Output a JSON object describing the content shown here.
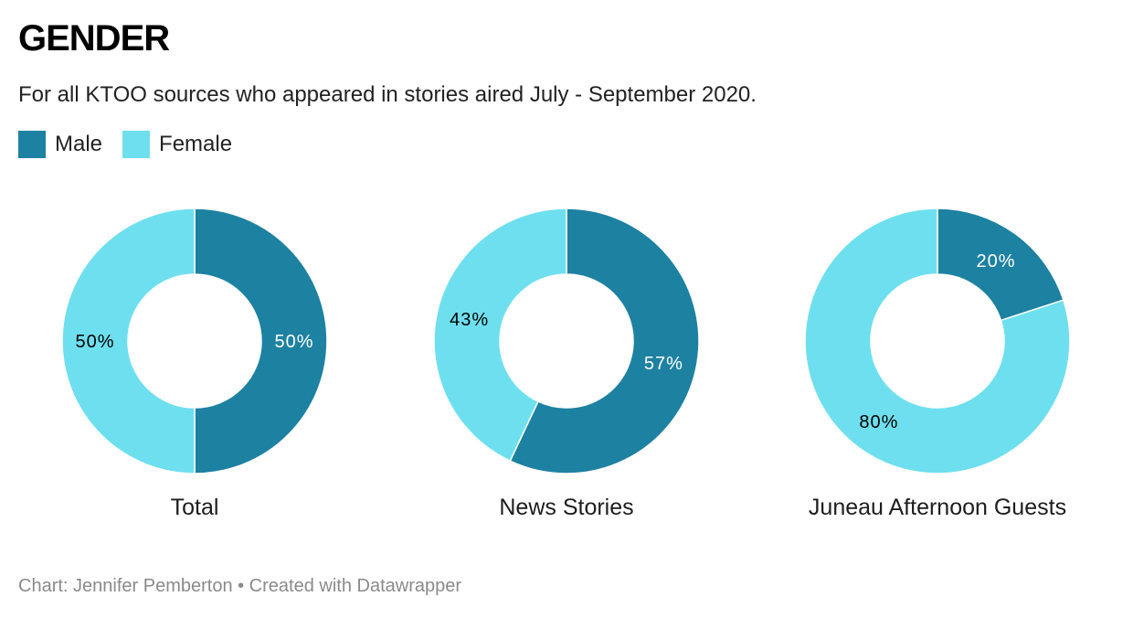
{
  "chart_data": {
    "type": "pie",
    "variant": "donut",
    "title": "GENDER",
    "subtitle": "For all KTOO sources who appeared in stories aired July - September 2020.",
    "legend": {
      "placement": "top-left",
      "entries": [
        {
          "name": "Male",
          "color": "#1d81a2"
        },
        {
          "name": "Female",
          "color": "#6edfef"
        }
      ]
    },
    "charts": [
      {
        "label": "Total",
        "slices": [
          {
            "name": "Male",
            "value": 50,
            "label": "50%"
          },
          {
            "name": "Female",
            "value": 50,
            "label": "50%"
          }
        ]
      },
      {
        "label": "News Stories",
        "slices": [
          {
            "name": "Male",
            "value": 57,
            "label": "57%"
          },
          {
            "name": "Female",
            "value": 43,
            "label": "43%"
          }
        ]
      },
      {
        "label": "Juneau Afternoon Guests",
        "slices": [
          {
            "name": "Male",
            "value": 20,
            "label": "20%"
          },
          {
            "name": "Female",
            "value": 80,
            "label": "80%"
          }
        ]
      }
    ],
    "colors": {
      "Male": "#1d81a2",
      "Female": "#6edfef",
      "label_on_dark": "#ffffff",
      "label_on_light": "#000000"
    }
  },
  "footer": {
    "text": "Chart: Jennifer Pemberton • Created with Datawrapper"
  }
}
